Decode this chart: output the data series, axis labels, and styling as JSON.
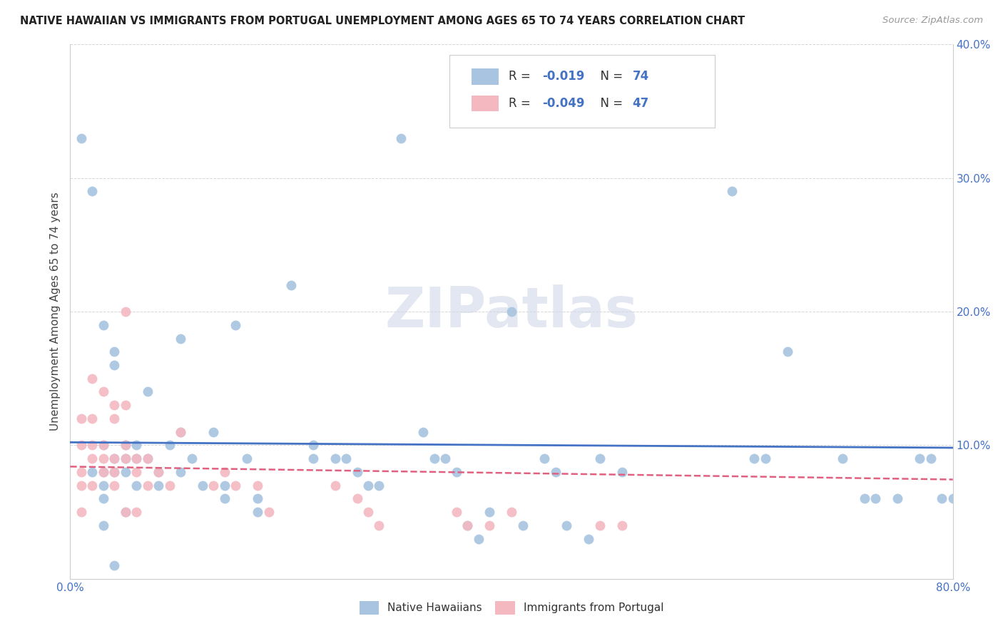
{
  "title": "NATIVE HAWAIIAN VS IMMIGRANTS FROM PORTUGAL UNEMPLOYMENT AMONG AGES 65 TO 74 YEARS CORRELATION CHART",
  "source": "Source: ZipAtlas.com",
  "ylabel": "Unemployment Among Ages 65 to 74 years",
  "xlim": [
    0.0,
    0.8
  ],
  "ylim": [
    0.0,
    0.4
  ],
  "xticks": [
    0.0,
    0.1,
    0.2,
    0.3,
    0.4,
    0.5,
    0.6,
    0.7,
    0.8
  ],
  "yticks": [
    0.0,
    0.1,
    0.2,
    0.3,
    0.4
  ],
  "xtick_labels": [
    "0.0%",
    "",
    "",
    "",
    "",
    "",
    "",
    "",
    "80.0%"
  ],
  "ytick_labels_right": [
    "",
    "10.0%",
    "20.0%",
    "30.0%",
    "40.0%"
  ],
  "blue_color": "#a8c4e0",
  "blue_line_color": "#4472c4",
  "pink_color": "#f4b8c1",
  "pink_line_color": "#e06080",
  "legend_R1_val": "-0.019",
  "legend_N1_val": "74",
  "legend_R2_val": "-0.049",
  "legend_N2_val": "47",
  "label1": "Native Hawaiians",
  "label2": "Immigrants from Portugal",
  "watermark": "ZIPatlas",
  "blue_R": -0.019,
  "pink_R": -0.049,
  "blue_x": [
    0.01,
    0.02,
    0.02,
    0.03,
    0.03,
    0.03,
    0.03,
    0.03,
    0.03,
    0.04,
    0.04,
    0.04,
    0.04,
    0.04,
    0.05,
    0.05,
    0.05,
    0.05,
    0.06,
    0.06,
    0.06,
    0.07,
    0.07,
    0.08,
    0.08,
    0.09,
    0.1,
    0.1,
    0.1,
    0.11,
    0.12,
    0.13,
    0.14,
    0.14,
    0.15,
    0.16,
    0.17,
    0.17,
    0.2,
    0.22,
    0.22,
    0.24,
    0.25,
    0.26,
    0.27,
    0.28,
    0.3,
    0.32,
    0.33,
    0.34,
    0.35,
    0.36,
    0.37,
    0.38,
    0.4,
    0.41,
    0.43,
    0.44,
    0.45,
    0.47,
    0.48,
    0.5,
    0.6,
    0.62,
    0.63,
    0.65,
    0.7,
    0.72,
    0.73,
    0.75,
    0.77,
    0.78,
    0.79,
    0.8
  ],
  "blue_y": [
    0.33,
    0.29,
    0.08,
    0.19,
    0.1,
    0.08,
    0.07,
    0.06,
    0.04,
    0.17,
    0.16,
    0.09,
    0.08,
    0.01,
    0.1,
    0.09,
    0.08,
    0.05,
    0.1,
    0.09,
    0.07,
    0.14,
    0.09,
    0.08,
    0.07,
    0.1,
    0.18,
    0.11,
    0.08,
    0.09,
    0.07,
    0.11,
    0.07,
    0.06,
    0.19,
    0.09,
    0.06,
    0.05,
    0.22,
    0.1,
    0.09,
    0.09,
    0.09,
    0.08,
    0.07,
    0.07,
    0.33,
    0.11,
    0.09,
    0.09,
    0.08,
    0.04,
    0.03,
    0.05,
    0.2,
    0.04,
    0.09,
    0.08,
    0.04,
    0.03,
    0.09,
    0.08,
    0.29,
    0.09,
    0.09,
    0.17,
    0.09,
    0.06,
    0.06,
    0.06,
    0.09,
    0.09,
    0.06,
    0.06
  ],
  "pink_x": [
    0.01,
    0.01,
    0.01,
    0.01,
    0.01,
    0.02,
    0.02,
    0.02,
    0.02,
    0.02,
    0.03,
    0.03,
    0.03,
    0.03,
    0.04,
    0.04,
    0.04,
    0.04,
    0.04,
    0.05,
    0.05,
    0.05,
    0.05,
    0.05,
    0.06,
    0.06,
    0.06,
    0.07,
    0.07,
    0.08,
    0.09,
    0.1,
    0.13,
    0.14,
    0.15,
    0.17,
    0.18,
    0.24,
    0.26,
    0.27,
    0.28,
    0.35,
    0.36,
    0.38,
    0.4,
    0.48,
    0.5
  ],
  "pink_y": [
    0.12,
    0.1,
    0.08,
    0.07,
    0.05,
    0.15,
    0.12,
    0.1,
    0.09,
    0.07,
    0.14,
    0.1,
    0.09,
    0.08,
    0.13,
    0.12,
    0.09,
    0.08,
    0.07,
    0.2,
    0.13,
    0.1,
    0.09,
    0.05,
    0.09,
    0.08,
    0.05,
    0.09,
    0.07,
    0.08,
    0.07,
    0.11,
    0.07,
    0.08,
    0.07,
    0.07,
    0.05,
    0.07,
    0.06,
    0.05,
    0.04,
    0.05,
    0.04,
    0.04,
    0.05,
    0.04,
    0.04
  ]
}
